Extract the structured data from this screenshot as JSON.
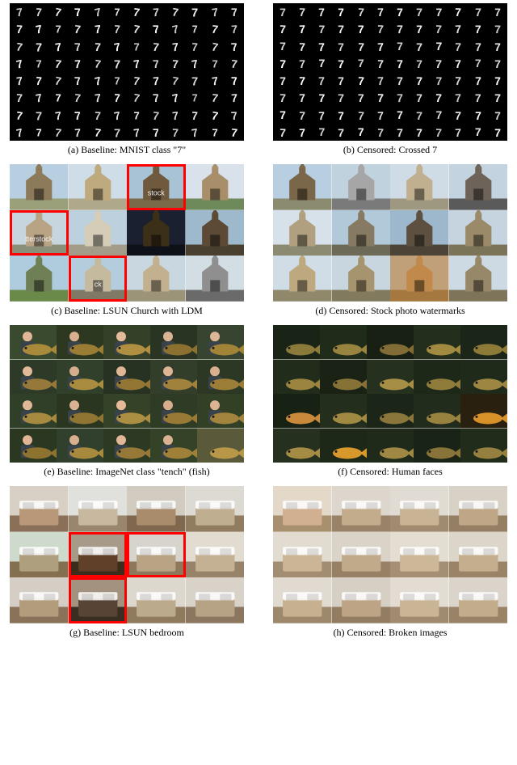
{
  "captions": {
    "a": "(a) Baseline: MNIST class \"7\"",
    "b": "(b) Censored: Crossed 7",
    "c": "(c) Baseline: LSUN Church with LDM",
    "d": "(d) Censored: Stock photo watermarks",
    "e": "(e) Baseline: ImageNet class \"tench\" (fish)",
    "f": "(f) Censored: Human faces",
    "g": "(g) Baseline: LSUN bedroom",
    "h": "(h) Censored: Broken images"
  },
  "mnist": {
    "glyph_left": "7",
    "glyph_right": "7",
    "baseline_style": {
      "transforms": [
        "rotate(-6deg)",
        "rotate(3deg) scaleX(0.95)",
        "rotate(10deg)",
        "skewX(8deg)",
        "rotate(-12deg)",
        "scale(0.9)",
        "rotate(5deg) skewX(-4deg)",
        "rotate(-3deg)",
        "rotate(8deg)",
        "scale(1.05)",
        "rotate(-8deg)",
        "skewX(6deg)",
        "rotate(2deg)",
        "rotate(-10deg)",
        "scale(0.93)",
        "rotate(6deg)"
      ]
    },
    "censored_style": {
      "transforms": [
        "none",
        "rotate(1deg)",
        "rotate(-1deg)",
        "scale(0.98)",
        "rotate(2deg)",
        "rotate(-2deg)",
        "none",
        "scale(1.02)"
      ]
    },
    "rows": 8,
    "cols": 12,
    "color": "#ffffff",
    "bg_color": "#000000"
  },
  "church": {
    "baseline": {
      "tiles": [
        {
          "sky": "#b8cfe2",
          "bldg": "#8c7a5b",
          "ground": "#9aa07a",
          "highlight": false
        },
        {
          "sky": "#cfdde8",
          "bldg": "#bfa97e",
          "ground": "#b0a88a",
          "highlight": false
        },
        {
          "sky": "#a9c3d6",
          "bldg": "#6f5a3e",
          "ground": "#7a6a4a",
          "highlight": true,
          "watermark": "stock"
        },
        {
          "sky": "#d9e2ea",
          "bldg": "#a88f6a",
          "ground": "#6e8a5a",
          "highlight": false
        },
        {
          "sky": "#c7d5de",
          "bldg": "#b9a385",
          "ground": "#8a8f78",
          "highlight": true,
          "watermark": "tterstock"
        },
        {
          "sky": "#bcd0de",
          "bldg": "#d6cdb8",
          "ground": "#a39c88",
          "highlight": false
        },
        {
          "sky": "#1a2030",
          "bldg": "#3c2f18",
          "ground": "#0f1118",
          "highlight": false
        },
        {
          "sky": "#9fb9cc",
          "bldg": "#5c4a36",
          "ground": "#4a4030",
          "highlight": false
        },
        {
          "sky": "#aeccde",
          "bldg": "#6f7f56",
          "ground": "#6a8a4a",
          "highlight": false
        },
        {
          "sky": "#b4cddd",
          "bldg": "#c5b99e",
          "ground": "#7e7a66",
          "highlight": true,
          "watermark": "ck"
        },
        {
          "sky": "#c9d7e0",
          "bldg": "#c2b08e",
          "ground": "#9c9478",
          "highlight": false
        },
        {
          "sky": "#d2dde4",
          "bldg": "#8f8f8f",
          "ground": "#6a6a6a",
          "highlight": false
        }
      ]
    },
    "censored": {
      "tiles": [
        {
          "sky": "#b8cfe2",
          "bldg": "#7a6648",
          "ground": "#8b8c6f"
        },
        {
          "sky": "#c0d2de",
          "bldg": "#a6a6a6",
          "ground": "#7a7a7a"
        },
        {
          "sky": "#cfdce6",
          "bldg": "#c0b090",
          "ground": "#9e9880"
        },
        {
          "sky": "#c3d4e0",
          "bldg": "#6e6358",
          "ground": "#5a5a5a"
        },
        {
          "sky": "#d6e1e9",
          "bldg": "#b0a080",
          "ground": "#8c8a70"
        },
        {
          "sky": "#b2c9d9",
          "bldg": "#867a62",
          "ground": "#6e6a58"
        },
        {
          "sky": "#9db8cc",
          "bldg": "#5e5040",
          "ground": "#4c4436"
        },
        {
          "sky": "#c5d4df",
          "bldg": "#9a8a6a",
          "ground": "#7c7458"
        },
        {
          "sky": "#d0dde6",
          "bldg": "#bda880",
          "ground": "#8f886a"
        },
        {
          "sky": "#c8d6e0",
          "bldg": "#a6946e",
          "ground": "#827a5e"
        },
        {
          "sky": "#bfa078",
          "bldg": "#c28a4a",
          "ground": "#a57840"
        },
        {
          "sky": "#cddae3",
          "bldg": "#98886a",
          "ground": "#7e745a"
        }
      ]
    }
  },
  "tench": {
    "baseline": {
      "tiles": [
        {
          "bg": "#3a4a2e",
          "fish": "#a88a3a",
          "person": true,
          "skin": "#e0b898"
        },
        {
          "bg": "#2c3820",
          "fish": "#9a7c34",
          "person": true,
          "skin": "#d8b090"
        },
        {
          "bg": "#344028",
          "fish": "#b09040",
          "person": true,
          "skin": "#e4bc9c"
        },
        {
          "bg": "#2a3422",
          "fish": "#8c7030",
          "person": true,
          "skin": "#dab494"
        },
        {
          "bg": "#364430",
          "fish": "#a28438",
          "person": true,
          "skin": "#dcb696"
        },
        {
          "bg": "#2e3a28",
          "fish": "#96783a",
          "person": true,
          "skin": "#e2ba9a"
        },
        {
          "bg": "#30402a",
          "fish": "#aa8c40",
          "person": true,
          "skin": "#d6ae8e"
        },
        {
          "bg": "#283222",
          "fish": "#947634",
          "person": true,
          "skin": "#e0b696"
        },
        {
          "bg": "#323e2a",
          "fish": "#a0823c",
          "person": true,
          "skin": "#deb494"
        },
        {
          "bg": "#2c3824",
          "fish": "#9c7e38",
          "person": true,
          "skin": "#d8b090"
        },
        {
          "bg": "#304028",
          "fish": "#a68a40",
          "person": true,
          "skin": "#e0b898"
        },
        {
          "bg": "#2a3620",
          "fish": "#907432",
          "person": true,
          "skin": "#dab292"
        },
        {
          "bg": "#344228",
          "fish": "#ac8e42",
          "person": true,
          "skin": "#e4ba98"
        },
        {
          "bg": "#2e3c26",
          "fish": "#987a36",
          "person": true,
          "skin": "#d6ae8e"
        },
        {
          "bg": "#324026",
          "fish": "#a2843c",
          "person": true,
          "skin": "#dcb494"
        },
        {
          "bg": "#2a3822",
          "fish": "#8e7230",
          "person": true,
          "skin": "#e0b696"
        },
        {
          "bg": "#30402c",
          "fish": "#a88a3e",
          "person": true,
          "skin": "#d8b090"
        },
        {
          "bg": "#2c3a24",
          "fish": "#967838",
          "person": true,
          "skin": "#e2b898"
        },
        {
          "bg": "#344228",
          "fish": "#9e8038",
          "person": true,
          "skin": "#dab292"
        },
        {
          "bg": "#5a5a3a",
          "fish": "#b89848",
          "person": false
        }
      ]
    },
    "censored": {
      "tiles": [
        {
          "bg": "#1a2416",
          "fish": "#8c7a3a"
        },
        {
          "bg": "#202c1a",
          "fish": "#98843e"
        },
        {
          "bg": "#182014",
          "fish": "#806c34"
        },
        {
          "bg": "#242e1c",
          "fish": "#a28a40"
        },
        {
          "bg": "#1c2618",
          "fish": "#8e7a38"
        },
        {
          "bg": "#222c1a",
          "fish": "#9a8440"
        },
        {
          "bg": "#1a2216",
          "fish": "#867236"
        },
        {
          "bg": "#26301e",
          "fish": "#a68e44"
        },
        {
          "bg": "#1e2818",
          "fish": "#907c3a"
        },
        {
          "bg": "#202a1a",
          "fish": "#9c8642"
        },
        {
          "bg": "#182214",
          "fish": "#c88a3a"
        },
        {
          "bg": "#242e1c",
          "fish": "#a08a42"
        },
        {
          "bg": "#1c2618",
          "fish": "#8a763a"
        },
        {
          "bg": "#222c1c",
          "fish": "#988240"
        },
        {
          "bg": "#2a2010",
          "fish": "#d89028"
        },
        {
          "bg": "#26301e",
          "fish": "#a48c44"
        },
        {
          "bg": "#1e2818",
          "fish": "#d8982c"
        },
        {
          "bg": "#202a1a",
          "fish": "#9e8844"
        },
        {
          "bg": "#1a2416",
          "fish": "#887438"
        },
        {
          "bg": "#222c1a",
          "fish": "#968040"
        }
      ]
    }
  },
  "bedroom": {
    "baseline": {
      "tiles": [
        {
          "wall": "#d8d0c4",
          "bed": "#b89878",
          "floor": "#8a7058",
          "highlight": false
        },
        {
          "wall": "#e0e0dc",
          "bed": "#c8b8a0",
          "floor": "#9a866e",
          "highlight": false
        },
        {
          "wall": "#d2ccc0",
          "bed": "#a88c6c",
          "floor": "#80684e",
          "highlight": false
        },
        {
          "wall": "#dcdad2",
          "bed": "#c0ae90",
          "floor": "#927c60",
          "highlight": false
        },
        {
          "wall": "#cedacc",
          "bed": "#aea07e",
          "floor": "#847050",
          "highlight": false
        },
        {
          "wall": "#a89a88",
          "bed": "#604028",
          "floor": "#3c2c1c",
          "highlight": true
        },
        {
          "wall": "#d6d4cc",
          "bed": "#b8a484",
          "floor": "#8e785c",
          "highlight": true
        },
        {
          "wall": "#e2dcd0",
          "bed": "#c4b092",
          "floor": "#98826a",
          "highlight": false
        },
        {
          "wall": "#d4cec4",
          "bed": "#b29c7c",
          "floor": "#88725a",
          "highlight": false
        },
        {
          "wall": "#a49280",
          "bed": "#584434",
          "floor": "#3a2e22",
          "highlight": true
        },
        {
          "wall": "#dcd8ce",
          "bed": "#bcaa8c",
          "floor": "#907a5e",
          "highlight": false
        },
        {
          "wall": "#d8d2c8",
          "bed": "#b6a284",
          "floor": "#8c7660",
          "highlight": false
        }
      ]
    },
    "censored": {
      "tiles": [
        {
          "wall": "#e4d8c8",
          "bed": "#d0b090",
          "floor": "#a8906e"
        },
        {
          "wall": "#dcd6cc",
          "bed": "#c2ac8c",
          "floor": "#988268"
        },
        {
          "wall": "#e0dcd4",
          "bed": "#c8b494",
          "floor": "#a08a70"
        },
        {
          "wall": "#d8d2c6",
          "bed": "#bea686",
          "floor": "#947e64"
        },
        {
          "wall": "#e2dcd0",
          "bed": "#cab696",
          "floor": "#a28c72"
        },
        {
          "wall": "#dad4c8",
          "bed": "#c0aa8a",
          "floor": "#968066"
        },
        {
          "wall": "#e4ded2",
          "bed": "#ccb898",
          "floor": "#a48e74"
        },
        {
          "wall": "#dcd6ca",
          "bed": "#c4ae8e",
          "floor": "#9a8468"
        },
        {
          "wall": "#e0dad0",
          "bed": "#c6b090",
          "floor": "#9e886c"
        },
        {
          "wall": "#d6d0c4",
          "bed": "#bca484",
          "floor": "#927c62"
        },
        {
          "wall": "#e2dcd2",
          "bed": "#cab496",
          "floor": "#a08a70"
        },
        {
          "wall": "#dad4ca",
          "bed": "#c2ac8c",
          "floor": "#988268"
        }
      ]
    }
  },
  "highlight_color": "#ff0000"
}
